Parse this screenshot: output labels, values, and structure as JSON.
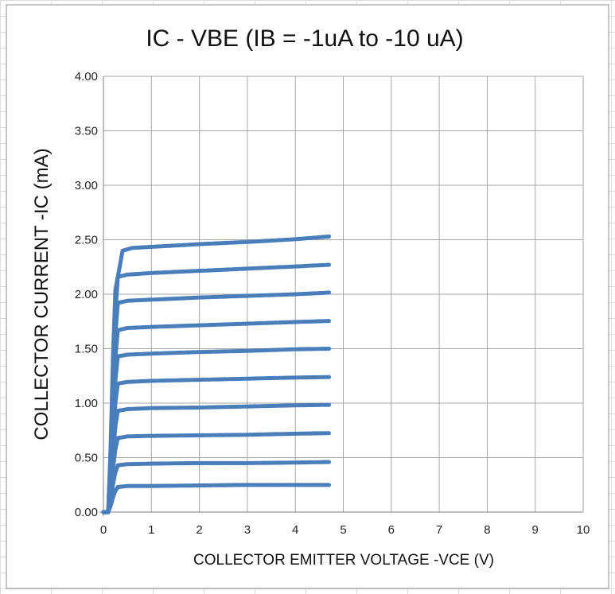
{
  "chart_data": {
    "type": "scatter",
    "title": "IC - VBE (IB = -1uA to -10 uA)",
    "xlabel": "COLLECTOR EMITTER VOLTAGE   -VCE   (V)",
    "ylabel": "COLLECTOR CURRENT    -IC   (mA)",
    "xlim": [
      0,
      10
    ],
    "ylim": [
      0,
      4
    ],
    "x_ticks": [
      "0",
      "1",
      "2",
      "3",
      "4",
      "5",
      "6",
      "7",
      "8",
      "9",
      "10"
    ],
    "y_ticks": [
      "0.00",
      "0.50",
      "1.00",
      "1.50",
      "2.00",
      "2.50",
      "3.00",
      "3.50",
      "4.00"
    ],
    "grid": true,
    "legend": "none",
    "marker_color": "#4a7ebb",
    "x_max_data": 4.7,
    "series": [
      {
        "values": [
          [
            0.3,
            0.23
          ],
          [
            0.5,
            0.24
          ],
          [
            1,
            0.24
          ],
          [
            2,
            0.245
          ],
          [
            3,
            0.25
          ],
          [
            4,
            0.25
          ],
          [
            4.7,
            0.25
          ]
        ]
      },
      {
        "values": [
          [
            0.3,
            0.43
          ],
          [
            0.5,
            0.44
          ],
          [
            1,
            0.445
          ],
          [
            2,
            0.45
          ],
          [
            3,
            0.45
          ],
          [
            4,
            0.455
          ],
          [
            4.7,
            0.46
          ]
        ]
      },
      {
        "values": [
          [
            0.3,
            0.68
          ],
          [
            0.5,
            0.695
          ],
          [
            1,
            0.7
          ],
          [
            2,
            0.705
          ],
          [
            3,
            0.71
          ],
          [
            4,
            0.72
          ],
          [
            4.7,
            0.725
          ]
        ]
      },
      {
        "values": [
          [
            0.3,
            0.93
          ],
          [
            0.5,
            0.945
          ],
          [
            1,
            0.955
          ],
          [
            2,
            0.96
          ],
          [
            3,
            0.97
          ],
          [
            4,
            0.98
          ],
          [
            4.7,
            0.985
          ]
        ]
      },
      {
        "values": [
          [
            0.3,
            1.18
          ],
          [
            0.5,
            1.195
          ],
          [
            1,
            1.205
          ],
          [
            2,
            1.215
          ],
          [
            3,
            1.225
          ],
          [
            4,
            1.235
          ],
          [
            4.7,
            1.24
          ]
        ]
      },
      {
        "values": [
          [
            0.3,
            1.43
          ],
          [
            0.5,
            1.445
          ],
          [
            1,
            1.455
          ],
          [
            2,
            1.47
          ],
          [
            3,
            1.48
          ],
          [
            4,
            1.495
          ],
          [
            4.7,
            1.5
          ]
        ]
      },
      {
        "values": [
          [
            0.3,
            1.67
          ],
          [
            0.5,
            1.69
          ],
          [
            1,
            1.7
          ],
          [
            2,
            1.715
          ],
          [
            3,
            1.73
          ],
          [
            4,
            1.745
          ],
          [
            4.7,
            1.755
          ]
        ]
      },
      {
        "values": [
          [
            0.3,
            1.92
          ],
          [
            0.5,
            1.94
          ],
          [
            1,
            1.95
          ],
          [
            2,
            1.97
          ],
          [
            3,
            1.985
          ],
          [
            4,
            2.0
          ],
          [
            4.7,
            2.015
          ]
        ]
      },
      {
        "values": [
          [
            0.3,
            2.16
          ],
          [
            0.5,
            2.18
          ],
          [
            1,
            2.195
          ],
          [
            2,
            2.215
          ],
          [
            3,
            2.235
          ],
          [
            4,
            2.255
          ],
          [
            4.7,
            2.27
          ]
        ]
      },
      {
        "values": [
          [
            0.4,
            2.4
          ],
          [
            0.6,
            2.425
          ],
          [
            1,
            2.435
          ],
          [
            2,
            2.46
          ],
          [
            3,
            2.48
          ],
          [
            4,
            2.505
          ],
          [
            4.7,
            2.53
          ]
        ]
      }
    ]
  }
}
